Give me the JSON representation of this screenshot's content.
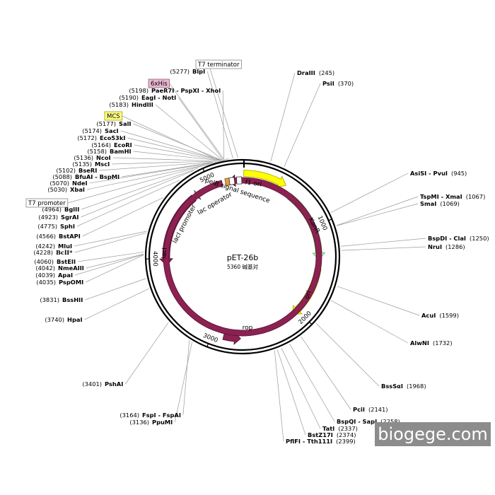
{
  "plasmid": {
    "name": "pET-26b",
    "size_label": "5360 碱基对",
    "length": 5360
  },
  "ticks": [
    {
      "pos": 1000,
      "label": "1000"
    },
    {
      "pos": 2000,
      "label": "2000"
    },
    {
      "pos": 3000,
      "label": "3000"
    },
    {
      "pos": 4000,
      "label": "4000"
    },
    {
      "pos": 5000,
      "label": "5000"
    }
  ],
  "features": [
    {
      "id": "f1-ori",
      "label": "f1 ori",
      "start": 12,
      "end": 467,
      "track": "outer",
      "color": "#ffff00",
      "stroke": "#a0a000",
      "dir": 1
    },
    {
      "id": "kanr",
      "label": "KanR",
      "start": 560,
      "end": 1375,
      "track": "inner",
      "color": "#c8f8c8",
      "stroke": "#60b060",
      "dir": 1
    },
    {
      "id": "ori",
      "label": "ori",
      "start": 1475,
      "end": 2070,
      "track": "inner",
      "color": "#ffff00",
      "stroke": "#a0a000",
      "dir": 1
    },
    {
      "id": "rop",
      "label": "rop",
      "start": 2880,
      "end": 2700,
      "track": "inner",
      "color": "#8b2252",
      "stroke": "#5a1030",
      "dir": -1
    },
    {
      "id": "laci",
      "label": "lacI",
      "start": 4770,
      "end": 3920,
      "track": "inner",
      "color": "#8b2252",
      "stroke": "#5a1030",
      "dir": -1
    },
    {
      "id": "laci-promoter",
      "label": "lacI promoter",
      "start": 4868,
      "end": 4800,
      "track": "inner",
      "color": "#ffffff",
      "stroke": "#333333",
      "dir": -1
    },
    {
      "id": "pelb",
      "label": "pelB signal sequence",
      "start": 5130,
      "end": 5200,
      "track": "inner",
      "color": "#8b2252",
      "stroke": "#5a1030",
      "dir": -1
    },
    {
      "id": "lac-operator",
      "label": "lac operator",
      "start": 5240,
      "end": 5262,
      "track": "inner",
      "color": "#60c0e0",
      "stroke": "#2a6a80",
      "dir": 0
    }
  ],
  "feature_glyphs": [
    {
      "id": "t7-term-box",
      "start": 5310,
      "end": 5335,
      "color": "#ffffff",
      "stroke": "#333"
    },
    {
      "id": "his-box",
      "start": 5185,
      "end": 5205,
      "color": "#e0a040",
      "stroke": "#805010"
    },
    {
      "id": "t7-prom-box",
      "start": 5232,
      "end": 5250,
      "color": "#ffffff",
      "stroke": "#333"
    }
  ],
  "tags": [
    {
      "id": "t7-terminator",
      "label": "T7 terminator",
      "style": "plain",
      "target": 5320
    },
    {
      "id": "6xhis",
      "label": "6xHis",
      "style": "pink",
      "target": 5200
    },
    {
      "id": "mcs",
      "label": "MCS",
      "style": "yellow",
      "target": 5160
    },
    {
      "id": "t7-promoter",
      "label": "T7 promoter",
      "style": "plain",
      "target": 5240
    }
  ],
  "sites_left": [
    {
      "name": "BlpI",
      "pos": "(5277)",
      "target": 5277
    },
    {
      "name": "PaeR7I - PspXI - XhoI",
      "pos": "(5198)",
      "target": 5198
    },
    {
      "name": "EagI - NotI",
      "pos": "(5190)",
      "target": 5190
    },
    {
      "name": "HindIII",
      "pos": "(5183)",
      "target": 5183
    },
    {
      "name": "SalI",
      "pos": "(5177)",
      "target": 5177
    },
    {
      "name": "SacI",
      "pos": "(5174)",
      "target": 5174
    },
    {
      "name": "Eco53kI",
      "pos": "(5172)",
      "target": 5172
    },
    {
      "name": "EcoRI",
      "pos": "(5164)",
      "target": 5164
    },
    {
      "name": "BamHI",
      "pos": "(5158)",
      "target": 5158
    },
    {
      "name": "NcoI",
      "pos": "(5136)",
      "target": 5136
    },
    {
      "name": "MscI",
      "pos": "(5135)",
      "target": 5135
    },
    {
      "name": "BseRI",
      "pos": "(5102)",
      "target": 5102
    },
    {
      "name": "BfuAI - BspMI",
      "pos": "(5088)",
      "target": 5088
    },
    {
      "name": "NdeI",
      "pos": "(5070)",
      "target": 5070
    },
    {
      "name": "XbaI",
      "pos": "(5030)",
      "target": 5030
    },
    {
      "name": "BglII",
      "pos": "(4964)",
      "target": 4964
    },
    {
      "name": "SgrAI",
      "pos": "(4923)",
      "target": 4923
    },
    {
      "name": "SphI",
      "pos": "(4775)",
      "target": 4775
    },
    {
      "name": "BstAPI",
      "pos": "(4566)",
      "target": 4566
    },
    {
      "name": "MluI",
      "pos": "(4242)",
      "target": 4242
    },
    {
      "name": "BclI*",
      "pos": "(4228)",
      "target": 4228,
      "style": "gray"
    },
    {
      "name": "BstEII",
      "pos": "(4060)",
      "target": 4060
    },
    {
      "name": "NmeAIII",
      "pos": "(4042)",
      "target": 4042
    },
    {
      "name": "ApaI",
      "pos": "(4039)",
      "target": 4039
    },
    {
      "name": "PspOMI",
      "pos": "(4035)",
      "target": 4035
    },
    {
      "name": "BssHII",
      "pos": "(3831)",
      "target": 3831
    },
    {
      "name": "HpaI",
      "pos": "(3740)",
      "target": 3740
    },
    {
      "name": "PshAI",
      "pos": "(3401)",
      "target": 3401
    },
    {
      "name": "FspI - FspAI",
      "pos": "(3164)",
      "target": 3164
    },
    {
      "name": "PpuMI",
      "pos": "(3136)",
      "target": 3136
    }
  ],
  "sites_right": [
    {
      "name": "DraIII",
      "pos": "(245)",
      "target": 245
    },
    {
      "name": "PsiI",
      "pos": "(370)",
      "target": 370
    },
    {
      "name": "AsiSI - PvuI",
      "pos": "(945)",
      "target": 945
    },
    {
      "name": "TspMI - XmaI",
      "pos": "(1067)",
      "target": 1067
    },
    {
      "name": "SmaI",
      "pos": "(1069)",
      "target": 1069
    },
    {
      "name": "BspDI - ClaI",
      "pos": "(1250)",
      "target": 1250
    },
    {
      "name": "NruI",
      "pos": "(1286)",
      "target": 1286
    },
    {
      "name": "AcuI",
      "pos": "(1599)",
      "target": 1599
    },
    {
      "name": "AlwNI",
      "pos": "(1732)",
      "target": 1732
    },
    {
      "name": "BssSαI",
      "pos": "(1968)",
      "target": 1968
    },
    {
      "name": "PciI",
      "pos": "(2141)",
      "target": 2141
    },
    {
      "name": "BspQI - SapI",
      "pos": "(2258)",
      "target": 2258
    },
    {
      "name": "TatI",
      "pos": "(2337)",
      "target": 2337
    },
    {
      "name": "BstZ17I",
      "pos": "(2374)",
      "target": 2374
    },
    {
      "name": "PflFI - Tth111I",
      "pos": "(2399)",
      "target": 2399
    }
  ],
  "watermark": "biogege.com"
}
